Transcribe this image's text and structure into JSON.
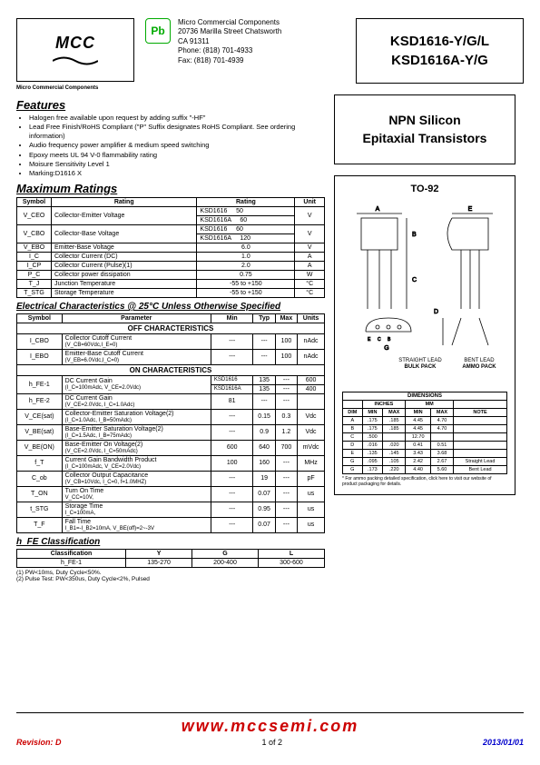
{
  "header": {
    "logo_text": "MCC",
    "logo_sub": "Micro Commercial Components",
    "company": {
      "name": "Micro Commercial Components",
      "addr1": "20736 Marilla Street Chatsworth",
      "addr2": "CA 91311",
      "phone": "Phone: (818) 701-4933",
      "fax": "Fax:      (818) 701-4939"
    },
    "part1": "KSD1616-Y/G/L",
    "part2": "KSD1616A-Y/G"
  },
  "features": {
    "title": "Features",
    "items": [
      "Halogen free available upon request by adding suffix \"-HF\"",
      "Lead Free Finish/RoHS Compliant (\"P\" Suffix designates RoHS Compliant.  See ordering information)",
      "Audio frequency power amplifier & medium speed switching",
      "Epoxy meets UL 94 V-0 flammability rating",
      "Moisure Sensitivity Level 1",
      "Marking:D1616  X"
    ]
  },
  "desc": {
    "line1": "NPN Silicon",
    "line2": "Epitaxial Transistors"
  },
  "max_ratings": {
    "title": "Maximum Ratings",
    "headers": [
      "Symbol",
      "Rating",
      "Rating",
      "Unit"
    ],
    "rows": [
      {
        "sym": "V_CEO",
        "param": "Collector-Emitter Voltage",
        "sub": [
          [
            "KSD1616",
            "50"
          ],
          [
            "KSD1616A",
            "60"
          ]
        ],
        "unit": "V"
      },
      {
        "sym": "V_CBO",
        "param": "Collector-Base Voltage",
        "sub": [
          [
            "KSD1616",
            "60"
          ],
          [
            "KSD1616A",
            "120"
          ]
        ],
        "unit": "V"
      },
      {
        "sym": "V_EBO",
        "param": "Emitter-Base Voltage",
        "val": "6.0",
        "unit": "V"
      },
      {
        "sym": "I_C",
        "param": "Collector Current (DC)",
        "val": "1.0",
        "unit": "A"
      },
      {
        "sym": "I_CP",
        "param": "Collector Current (Pulse)(1)",
        "val": "2.0",
        "unit": "A"
      },
      {
        "sym": "P_C",
        "param": "Collector power dissipation",
        "val": "0.75",
        "unit": "W"
      },
      {
        "sym": "T_J",
        "param": "Junction Temperature",
        "val": "-55 to +150",
        "unit": "°C"
      },
      {
        "sym": "T_STG",
        "param": "Storage Temperature",
        "val": "-55 to +150",
        "unit": "°C"
      }
    ]
  },
  "elec": {
    "title": "Electrical Characteristics @ 25°C Unless Otherwise Specified",
    "headers": [
      "Symbol",
      "Parameter",
      "Min",
      "Typ",
      "Max",
      "Units"
    ],
    "off_title": "OFF CHARACTERISTICS",
    "on_title": "ON CHARACTERISTICS",
    "off_rows": [
      {
        "sym": "I_CBO",
        "param": "Collector Cutoff Current",
        "cond": "(V_CB=60Vdc,I_E=0)",
        "min": "---",
        "typ": "---",
        "max": "100",
        "unit": "nAdc"
      },
      {
        "sym": "I_EBO",
        "param": "Emitter-Base Cutoff Current",
        "cond": "(V_EB=6.0Vdc,I_C=0)",
        "min": "---",
        "typ": "---",
        "max": "100",
        "unit": "nAdc"
      }
    ],
    "on_rows": [
      {
        "sym": "h_FE-1",
        "param": "DC Current Gain",
        "cond": "(I_C=100mAdc, V_CE=2.0Vdc)",
        "sub": [
          [
            "KSD1616",
            "135",
            "---",
            "600"
          ],
          [
            "KSD1616A",
            "135",
            "---",
            "400"
          ]
        ],
        "unit": ""
      },
      {
        "sym": "h_FE-2",
        "param": "DC Current Gain",
        "cond": "(V_CE=2.0Vdc, I_C=1.0Adc)",
        "min": "81",
        "typ": "---",
        "max": "---",
        "unit": ""
      },
      {
        "sym": "V_CE(sat)",
        "param": "Collector-Emitter Saturation Voltage(2)",
        "cond": "(I_C=1.0Adc, I_B=50mAdc)",
        "min": "---",
        "typ": "0.15",
        "max": "0.3",
        "unit": "Vdc"
      },
      {
        "sym": "V_BE(sat)",
        "param": "Base-Emitter Saturation Voltage(2)",
        "cond": "(I_C=1.5Adc, I_B=75mAdc)",
        "min": "---",
        "typ": "0.9",
        "max": "1.2",
        "unit": "Vdc"
      },
      {
        "sym": "V_BE(ON)",
        "param": "Base-Emitter On Voltage(2)",
        "cond": "(V_CE=2.0Vdc, I_C=50mAdc)",
        "min": "600",
        "typ": "640",
        "max": "700",
        "unit": "mVdc"
      },
      {
        "sym": "f_T",
        "param": "Current Gain Bandwidth Product",
        "cond": "(I_C=100mAdc, V_CE=2.0Vdc)",
        "min": "100",
        "typ": "160",
        "max": "---",
        "unit": "MHz"
      },
      {
        "sym": "C_ob",
        "param": "Collector Output Capacitance",
        "cond": "(V_CB=10Vdc, I_C=0, f=1.0MHZ)",
        "min": "---",
        "typ": "19",
        "max": "---",
        "unit": "pF"
      },
      {
        "sym": "T_ON",
        "param": "Turn On Time",
        "cond": "V_CC=10V,",
        "min": "---",
        "typ": "0.07",
        "max": "---",
        "unit": "us"
      },
      {
        "sym": "t_STG",
        "param": "Storage Time",
        "cond": "I_C=100mA,",
        "min": "---",
        "typ": "0.95",
        "max": "---",
        "unit": "us"
      },
      {
        "sym": "T_F",
        "param": "Fall Time",
        "cond": "I_B1=-I_B2=10mA, V_BE(off)=2~-3V",
        "min": "---",
        "typ": "0.07",
        "max": "---",
        "unit": "us"
      }
    ]
  },
  "classification": {
    "title": "h_FE Classification",
    "headers": [
      "Classification",
      "Y",
      "G",
      "L"
    ],
    "row": [
      "h_FE-1",
      "135-270",
      "200-400",
      "300-600"
    ]
  },
  "notes": {
    "n1": "(1)  PW<10ms, Duty Cycle<50%.",
    "n2": "(2)  Pulse Test: PW<350us, Duty Cycle<2%, Pulsed"
  },
  "package": {
    "title": "TO-92",
    "dim_title": "DIMENSIONS",
    "dim_headers": [
      "DIM",
      "MIN",
      "MAX",
      "MIN",
      "MAX",
      "NOTE"
    ],
    "dim_subheaders": [
      "",
      "INCHES",
      "INCHES",
      "MM",
      "MM",
      ""
    ],
    "dims": [
      [
        "A",
        ".175",
        ".185",
        "4.45",
        "4.70",
        ""
      ],
      [
        "B",
        ".175",
        ".185",
        "4.45",
        "4.70",
        ""
      ],
      [
        "C",
        ".500",
        "",
        "12.70",
        "",
        ""
      ],
      [
        "D",
        ".016",
        ".020",
        "0.41",
        "0.51",
        ""
      ],
      [
        "E",
        ".135",
        ".145",
        "3.43",
        "3.68",
        ""
      ],
      [
        "G",
        ".095",
        ".105",
        "2.42",
        "2.67",
        "Straight Lead"
      ],
      [
        "G",
        ".173",
        ".220",
        "4.40",
        "5.60",
        "Bent Lead"
      ]
    ],
    "straight_label": "STRAIGHT LEAD",
    "bulk_label": "BULK PACK",
    "bent_label": "BENT LEAD",
    "ammo_label": "AMMO PACK",
    "note": "* For ammo packing detailed specification, click here to visit our website of product packaging for details."
  },
  "footer": {
    "url": "www.mccsemi.com",
    "revision": "Revision:  D",
    "page": "1 of 2",
    "date": "2013/01/01"
  }
}
